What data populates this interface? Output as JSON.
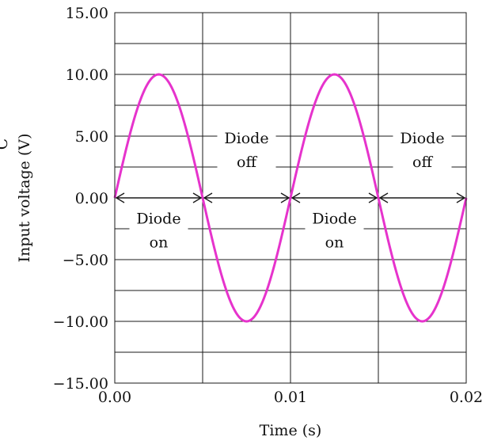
{
  "chart_data": {
    "type": "line",
    "xlabel": "Time (s)",
    "ylabel": "Input voltage (V)",
    "xlim": [
      0,
      0.02
    ],
    "ylim": [
      -15,
      15
    ],
    "x_ticks": [
      0,
      0.01,
      0.02
    ],
    "x_tick_labels": [
      "0.00",
      "0.01",
      "0.02"
    ],
    "y_ticks": [
      -15,
      -10,
      -5,
      0,
      5,
      10,
      15
    ],
    "y_tick_labels": [
      "−15.00",
      "−10.00",
      "−5.00",
      "0.00",
      "5.00",
      "10.00",
      "15.00"
    ],
    "minor_y_step": 2.5,
    "minor_x_step": 0.005,
    "grid": true,
    "series": [
      {
        "color": "#e633cc",
        "function": "10*sin(2*pi*100*t)",
        "amplitude": 10,
        "frequency_hz": 100,
        "x": [
          0,
          0.00125,
          0.0025,
          0.00375,
          0.005,
          0.00625,
          0.0075,
          0.00875,
          0.01,
          0.01125,
          0.0125,
          0.01375,
          0.015,
          0.01625,
          0.0175,
          0.01875,
          0.02
        ],
        "y": [
          0,
          7.07,
          10,
          7.07,
          0,
          -7.07,
          -10,
          -7.07,
          0,
          7.07,
          10,
          7.07,
          0,
          -7.07,
          -10,
          -7.07,
          0
        ]
      }
    ],
    "annotations": [
      {
        "lines": [
          "Diode",
          "on"
        ],
        "x_start": 0.0,
        "x_end": 0.005,
        "position": "below"
      },
      {
        "lines": [
          "Diode",
          "off"
        ],
        "x_start": 0.005,
        "x_end": 0.01,
        "position": "above"
      },
      {
        "lines": [
          "Diode",
          "on"
        ],
        "x_start": 0.01,
        "x_end": 0.015,
        "position": "below"
      },
      {
        "lines": [
          "Diode",
          "off"
        ],
        "x_start": 0.015,
        "x_end": 0.02,
        "position": "above"
      }
    ],
    "partial_label_left_edge": "C"
  }
}
